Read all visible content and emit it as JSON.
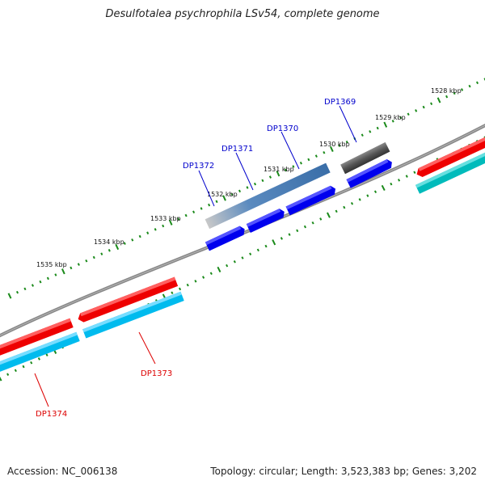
{
  "title": "Desulfotalea psychrophila LSv54, complete genome",
  "footer": {
    "accession": "Accession: NC_006138",
    "topology": "Topology: circular; Length: 3,523,383 bp; Genes: 3,202"
  },
  "ticks": {
    "labels": [
      "1528 kbp",
      "1529 kbp",
      "1530 kbp",
      "1531 kbp",
      "1532 kbp",
      "1533 kbp",
      "1534 kbp",
      "1535 kbp"
    ]
  },
  "genes": {
    "forward_labels": [
      "DP1369",
      "DP1370",
      "DP1371",
      "DP1372"
    ],
    "reverse_labels": [
      "DP1373",
      "DP1374"
    ]
  },
  "colors": {
    "backbone": "#808080",
    "tick": "#1a8a1a",
    "forward_label": "#0000cc",
    "reverse_label": "#dd0000",
    "cds_blue": "#0000ee",
    "cds_red": "#ee0000",
    "cds_cyan": "#00bbee",
    "cds_teal": "#00bbbb",
    "gray_dark": "#555555",
    "gray_light": "#bbbbbb",
    "steelblue": "#4477aa"
  }
}
